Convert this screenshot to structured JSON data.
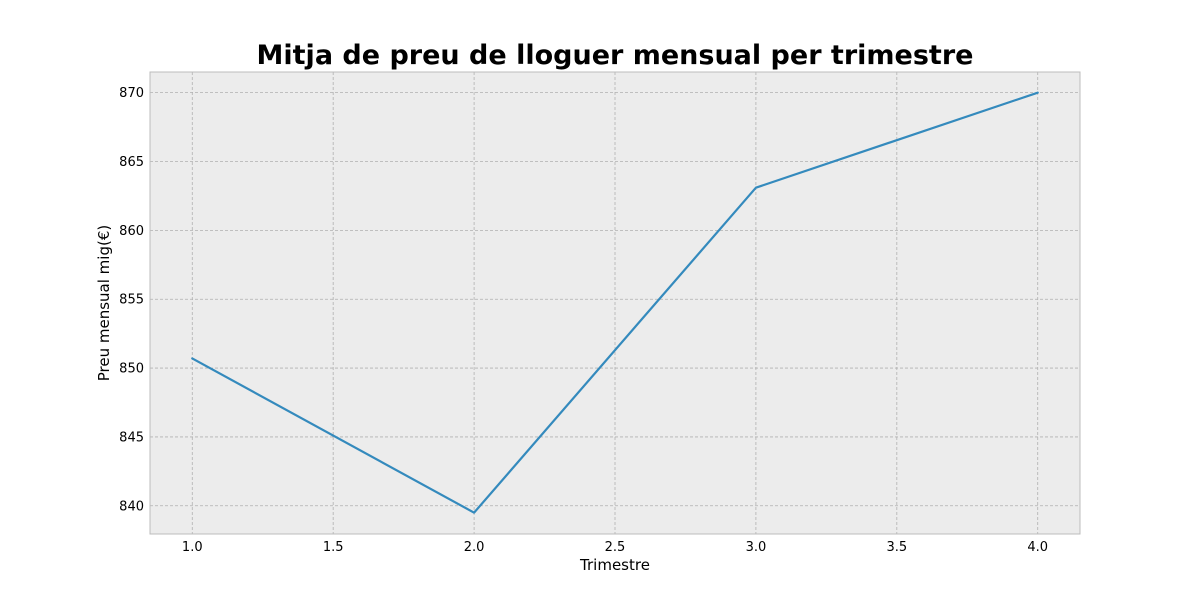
{
  "chart_data": {
    "type": "line",
    "title": "Mitja de preu de lloguer mensual per trimestre",
    "xlabel": "Trimestre",
    "ylabel": "Preu mensual mig(€)",
    "x": [
      1.0,
      2.0,
      3.0,
      4.0
    ],
    "series": [
      {
        "values": [
          850.7,
          839.5,
          863.1,
          870.0
        ],
        "color": "#348abd"
      }
    ],
    "xlim": [
      0.85,
      4.15
    ],
    "ylim": [
      837.95,
      871.5
    ],
    "xticks": [
      1.0,
      1.5,
      2.0,
      2.5,
      3.0,
      3.5,
      4.0
    ],
    "xtick_labels": [
      "1.0",
      "1.5",
      "2.0",
      "2.5",
      "3.0",
      "3.5",
      "4.0"
    ],
    "yticks": [
      840,
      845,
      850,
      855,
      860,
      865,
      870
    ],
    "ytick_labels": [
      "840",
      "845",
      "850",
      "855",
      "860",
      "865",
      "870"
    ],
    "grid": true,
    "style": {
      "plot_background": "#ececec",
      "grid_color": "#b0b0b0",
      "axes_edge_color": "#bcbcbc"
    }
  }
}
